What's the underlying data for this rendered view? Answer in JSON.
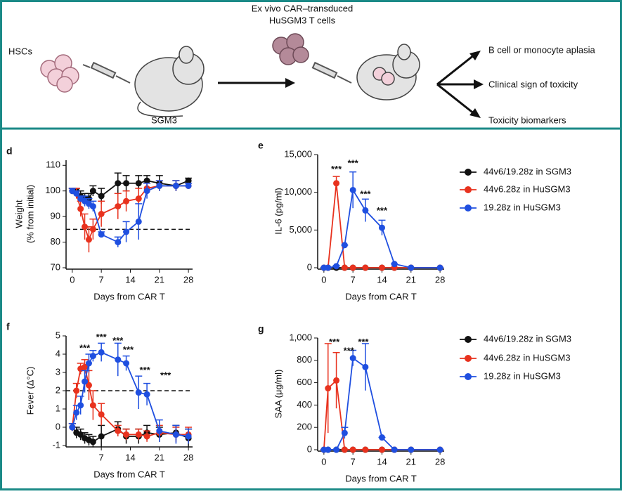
{
  "schematic": {
    "hsc": "HSCs",
    "mouse1": "SGM3",
    "cells": [
      "Ex vivo CAR–transduced",
      "HuSGM3 T cells"
    ],
    "outcomes": [
      "B cell or monocyte aplasia",
      "Clinical sign of toxicity",
      "Toxicity biomarkers"
    ]
  },
  "chart_data": [
    {
      "type": "line",
      "label": "d",
      "ylabel": [
        "Weight",
        "(% from initial)"
      ],
      "xlabel": "Days from CAR T",
      "x": [
        0,
        1,
        2,
        3,
        4,
        5,
        7,
        11,
        13,
        16,
        18,
        21,
        25,
        28
      ],
      "xlim": [
        -1.5,
        29
      ],
      "xticks": [
        0,
        7,
        14,
        21,
        28
      ],
      "ylim": [
        70,
        112
      ],
      "yticks": [
        70,
        80,
        90,
        100,
        110
      ],
      "hline": 85,
      "legend": false,
      "series": [
        {
          "name": "44v6/19.28z in SGM3",
          "color": "#111111",
          "values": [
            100,
            100,
            98,
            97,
            97,
            100,
            98,
            103,
            103,
            103,
            104,
            103,
            102,
            104
          ],
          "errors": [
            1,
            1,
            2,
            2,
            2,
            2,
            3,
            4,
            3,
            3,
            2,
            3,
            2,
            1
          ]
        },
        {
          "name": "44v6.28z in HuSGM3",
          "color": "#e8321e",
          "values": [
            100,
            99,
            93,
            86,
            81,
            85,
            91,
            94,
            96,
            97,
            101,
            102,
            102,
            102
          ],
          "errors": [
            1,
            2,
            3,
            5,
            5,
            4,
            5,
            5,
            4,
            4,
            2,
            2,
            2,
            1
          ]
        },
        {
          "name": "19.28z in HuSGM3",
          "color": "#1f4fe0",
          "values": [
            100,
            99,
            97,
            96,
            95,
            94,
            83,
            80,
            84,
            88,
            100,
            102,
            102,
            102
          ],
          "errors": [
            1,
            1,
            1,
            2,
            2,
            2,
            1,
            2,
            4,
            7,
            3,
            2,
            2,
            1
          ]
        }
      ]
    },
    {
      "type": "line",
      "label": "e",
      "ylabel": [
        "IL-6 (pg/ml)"
      ],
      "xlabel": "Days from CAR T",
      "x": [
        0,
        1,
        3,
        5,
        7,
        10,
        14,
        17,
        21,
        28
      ],
      "xlim": [
        -1.5,
        29
      ],
      "xticks": [
        0,
        7,
        14,
        21,
        28
      ],
      "ylim": [
        0,
        15000
      ],
      "yticks": [
        0,
        {
          "value": 5000,
          "label": "5,000"
        },
        {
          "value": 10000,
          "label": "10,000"
        },
        {
          "value": 15000,
          "label": "15,000"
        }
      ],
      "legend": true,
      "series": [
        {
          "name": "44v6/19.28z in SGM3",
          "color": "#111111",
          "values": [
            0,
            0,
            0,
            0,
            0,
            0,
            0,
            0,
            0,
            0
          ],
          "errors": [
            0,
            0,
            0,
            0,
            0,
            0,
            0,
            0,
            0,
            0
          ]
        },
        {
          "name": "44v6.28z in HuSGM3",
          "color": "#e8321e",
          "values": [
            0,
            0,
            11200,
            0,
            0,
            0,
            0,
            0,
            0,
            0
          ],
          "errors": [
            0,
            0,
            900,
            0,
            0,
            0,
            0,
            0,
            0,
            0
          ]
        },
        {
          "name": "19.28z in HuSGM3",
          "color": "#1f4fe0",
          "values": [
            0,
            0,
            200,
            3000,
            10300,
            7600,
            5300,
            500,
            0,
            0
          ],
          "errors": [
            0,
            0,
            100,
            0,
            2400,
            1500,
            1000,
            0,
            0,
            0
          ]
        }
      ],
      "annotations": [
        {
          "text": "***",
          "x": 3,
          "y": 13000
        },
        {
          "text": "***",
          "x": 7,
          "y": 13800
        },
        {
          "text": "***",
          "x": 10,
          "y": 9700
        },
        {
          "text": "***",
          "x": 14,
          "y": 7500
        }
      ]
    },
    {
      "type": "line",
      "label": "f",
      "ylabel": [
        "Fever (Δ°C)"
      ],
      "xlabel": "Days from CAR T",
      "x": [
        0,
        1,
        2,
        3,
        4,
        5,
        7,
        11,
        13,
        16,
        18,
        21,
        25,
        28
      ],
      "xlim": [
        -1.5,
        29
      ],
      "xticks": [
        7,
        14,
        21,
        28
      ],
      "ylim": [
        -1,
        5
      ],
      "yticks": [
        -1,
        0,
        1,
        2,
        3,
        4,
        5
      ],
      "hline": 2,
      "legend": false,
      "series": [
        {
          "name": "44v6/19.28z in SGM3",
          "color": "#111111",
          "values": [
            0,
            -0.3,
            -0.4,
            -0.6,
            -0.7,
            -0.8,
            -0.5,
            -0.1,
            -0.5,
            -0.5,
            -0.3,
            -0.4,
            -0.3,
            -0.6
          ],
          "errors": [
            0.2,
            0.3,
            0.3,
            0.3,
            0.3,
            0.3,
            0.6,
            0.4,
            0.4,
            0.4,
            0.4,
            0.4,
            0.4,
            0.5
          ]
        },
        {
          "name": "44v6.28z in HuSGM3",
          "color": "#e8321e",
          "values": [
            0,
            2.0,
            3.2,
            3.3,
            2.3,
            1.2,
            0.7,
            -0.2,
            -0.4,
            -0.4,
            -0.5,
            -0.3,
            -0.4,
            -0.4
          ],
          "errors": [
            0.2,
            0.4,
            0.3,
            0.4,
            0.8,
            0.8,
            0.6,
            0.3,
            0.3,
            0.3,
            0.3,
            0.4,
            0.4,
            0.4
          ]
        },
        {
          "name": "19.28z in HuSGM3",
          "color": "#1f4fe0",
          "values": [
            0,
            0.8,
            1.2,
            2.5,
            3.5,
            3.9,
            4.1,
            3.7,
            3.5,
            1.9,
            1.8,
            -0.2,
            -0.4,
            -0.5
          ],
          "errors": [
            0.2,
            0.4,
            0.5,
            0.6,
            0.5,
            0.3,
            0.5,
            0.9,
            0.4,
            0.9,
            0.6,
            0.6,
            0.5,
            0.4
          ]
        }
      ],
      "annotations": [
        {
          "text": "***",
          "x": 3,
          "y": 4.3
        },
        {
          "text": "***",
          "x": 7,
          "y": 4.9
        },
        {
          "text": "***",
          "x": 11,
          "y": 4.7
        },
        {
          "text": "***",
          "x": 13.5,
          "y": 4.2
        },
        {
          "text": "***",
          "x": 17.5,
          "y": 3.1
        },
        {
          "text": "***",
          "x": 22.5,
          "y": 2.8
        }
      ]
    },
    {
      "type": "line",
      "label": "g",
      "ylabel": [
        "SAA (μg/ml)"
      ],
      "xlabel": "Days from CAR T",
      "x": [
        0,
        1,
        3,
        5,
        7,
        10,
        14,
        17,
        21,
        28
      ],
      "xlim": [
        -1.5,
        29
      ],
      "xticks": [
        0,
        7,
        14,
        21,
        28
      ],
      "ylim": [
        0,
        1000
      ],
      "yticks": [
        0,
        200,
        400,
        600,
        800,
        {
          "value": 1000,
          "label": "1,000"
        }
      ],
      "legend": true,
      "series": [
        {
          "name": "44v6/19.28z in SGM3",
          "color": "#111111",
          "values": [
            0,
            0,
            0,
            0,
            0,
            0,
            0,
            0,
            0,
            0
          ],
          "errors": [
            0,
            0,
            0,
            0,
            0,
            0,
            0,
            0,
            0,
            0
          ]
        },
        {
          "name": "44v6.28z in HuSGM3",
          "color": "#e8321e",
          "values": [
            0,
            550,
            620,
            0,
            0,
            0,
            0,
            0,
            0,
            0
          ],
          "errors": [
            0,
            400,
            250,
            0,
            0,
            0,
            0,
            0,
            0,
            0
          ]
        },
        {
          "name": "19.28z in HuSGM3",
          "color": "#1f4fe0",
          "values": [
            0,
            0,
            0,
            150,
            820,
            740,
            110,
            0,
            0,
            0
          ],
          "errors": [
            0,
            0,
            0,
            50,
            70,
            210,
            0,
            0,
            0,
            0
          ]
        }
      ],
      "annotations": [
        {
          "text": "***",
          "x": 2.5,
          "y": 960
        },
        {
          "text": "***",
          "x": 6,
          "y": 880
        },
        {
          "text": "***",
          "x": 9.5,
          "y": 960
        }
      ]
    }
  ]
}
